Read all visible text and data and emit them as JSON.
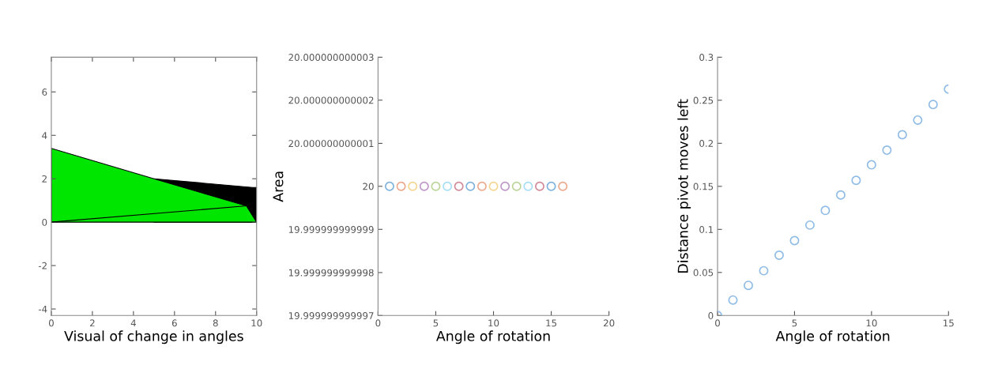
{
  "chart_data": [
    {
      "type": "area",
      "xlabel": "Visual of change in angles",
      "xlim": [
        0,
        10
      ],
      "xticks": [
        0,
        2,
        4,
        6,
        8,
        10
      ],
      "ylim": [
        -4.3,
        7.6
      ],
      "yticks": [
        -4,
        -2,
        0,
        2,
        4,
        6
      ],
      "series": [
        {
          "type": "area",
          "color": "#000000",
          "x": [
            5,
            9.8,
            10,
            10
          ],
          "values": [
            2.0,
            1.6,
            1.6,
            0
          ]
        },
        {
          "type": "area",
          "color": "#00e600",
          "x": [
            0,
            5,
            9.5,
            10
          ],
          "values": [
            3.4,
            2.0,
            0.75,
            0
          ]
        },
        {
          "type": "line",
          "color": "#000000",
          "x": [
            0,
            9.5
          ],
          "values": [
            0,
            0.75
          ]
        }
      ]
    },
    {
      "type": "scatter",
      "xlabel": "Angle of rotation",
      "ylabel": "Area",
      "marker": "circle",
      "xlim": [
        0,
        20
      ],
      "xticks": [
        0,
        5,
        10,
        15,
        20
      ],
      "ylim": [
        19.999999999997,
        20.000000000003
      ],
      "yticks": [
        {
          "value": 19.999999999997,
          "label": "19.999999999997"
        },
        {
          "value": 19.999999999998,
          "label": "19.999999999998"
        },
        {
          "value": 19.999999999999,
          "label": "19.999999999999"
        },
        20,
        {
          "value": 20.000000000001,
          "label": "20.000000000001"
        },
        {
          "value": 20.000000000002,
          "label": "20.000000000002"
        },
        {
          "value": 20.000000000003,
          "label": "20.000000000003"
        }
      ],
      "x": [
        1,
        2,
        3,
        4,
        5,
        6,
        7,
        8,
        9,
        10,
        11,
        12,
        13,
        14,
        15,
        16
      ],
      "values": [
        20,
        20,
        20,
        20,
        20,
        20,
        20,
        20,
        20,
        20,
        20,
        20,
        20,
        20,
        20,
        20
      ],
      "colors": [
        "#7fb2dc",
        "#eca98c",
        "#f4d690",
        "#be97c6",
        "#bbd598",
        "#a6def6",
        "#d08997",
        "#7fb2dc",
        "#eca98c",
        "#f4d690",
        "#be97c6",
        "#bbd598",
        "#a6def6",
        "#d08997",
        "#7fb2dc",
        "#eca98c"
      ]
    },
    {
      "type": "scatter",
      "xlabel": "Angle of rotation",
      "ylabel": "Distance pivot moves left",
      "marker": "circle",
      "color": "#8fbce6",
      "xlim": [
        0,
        15
      ],
      "xticks": [
        0,
        5,
        10,
        15
      ],
      "ylim": [
        0,
        0.3
      ],
      "yticks": [
        0,
        0.05,
        0.1,
        0.15,
        0.2,
        0.25,
        0.3
      ],
      "x": [
        0,
        1,
        2,
        3,
        4,
        5,
        6,
        7,
        8,
        9,
        10,
        11,
        12,
        13,
        14,
        15
      ],
      "values": [
        0,
        0.018,
        0.035,
        0.052,
        0.07,
        0.087,
        0.105,
        0.122,
        0.14,
        0.157,
        0.175,
        0.192,
        0.21,
        0.227,
        0.245,
        0.263
      ]
    }
  ]
}
